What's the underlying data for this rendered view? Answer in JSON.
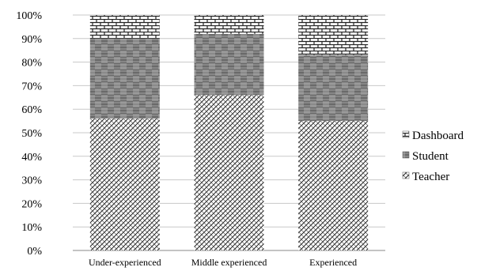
{
  "chart_data": {
    "type": "bar",
    "stacked": true,
    "percent": true,
    "categories": [
      "Under-experienced",
      "Middle experienced",
      "Experienced"
    ],
    "series": [
      {
        "name": "Teacher",
        "values": [
          56,
          66,
          55
        ],
        "pattern": "diagonal-crosshatch"
      },
      {
        "name": "Student",
        "values": [
          34,
          26,
          28
        ],
        "pattern": "checkerboard"
      },
      {
        "name": "Dashboard",
        "values": [
          10,
          8,
          17
        ],
        "pattern": "brick"
      }
    ],
    "ylim": [
      0,
      100
    ],
    "yticks": [
      "0%",
      "10%",
      "20%",
      "30%",
      "40%",
      "50%",
      "60%",
      "70%",
      "80%",
      "90%",
      "100%"
    ],
    "grid": true,
    "legend_position": "right"
  }
}
